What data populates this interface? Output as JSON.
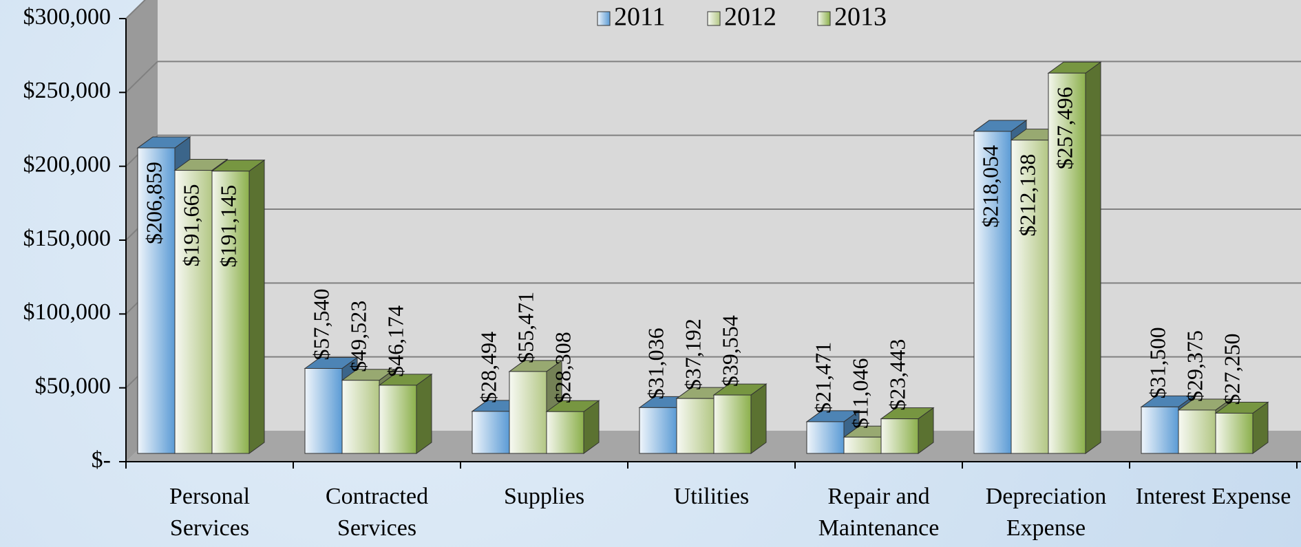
{
  "chart_data": {
    "type": "bar3d",
    "categories": [
      "Personal Services",
      "Contracted Services",
      "Supplies",
      "Utilities",
      "Repair and Maintenance",
      "Depreciation Expense",
      "Interest Expense"
    ],
    "series": [
      {
        "name": "2011",
        "color": "#5b9bd5",
        "values": [
          206859,
          57540,
          28494,
          31036,
          21471,
          218054,
          31500
        ],
        "value_labels": [
          "$206,859",
          "$57,540",
          "$28,494",
          "$31,036",
          "$21,471",
          "$218,054",
          "$31,500"
        ]
      },
      {
        "name": "2012",
        "color": "#b3c785",
        "values": [
          191665,
          49523,
          55471,
          37192,
          11046,
          212138,
          29375
        ],
        "value_labels": [
          "$191,665",
          "$49,523",
          "$55,471",
          "$37,192",
          "$11,046",
          "$212,138",
          "$29,375"
        ]
      },
      {
        "name": "2013",
        "color": "#8cb04c",
        "values": [
          191145,
          46174,
          28308,
          39554,
          23443,
          257496,
          27250
        ],
        "value_labels": [
          "$191,145",
          "$46,174",
          "$28,308",
          "$39,554",
          "$23,443",
          "$257,496",
          "$27,250"
        ]
      }
    ],
    "ylim": [
      0,
      300000
    ],
    "yticks": [
      {
        "value": 0,
        "label": "$-"
      },
      {
        "value": 50000,
        "label": "$50,000"
      },
      {
        "value": 100000,
        "label": "$100,000"
      },
      {
        "value": 150000,
        "label": "$150,000"
      },
      {
        "value": 200000,
        "label": "$200,000"
      },
      {
        "value": 250000,
        "label": "$250,000"
      },
      {
        "value": 300000,
        "label": "$300,000"
      }
    ],
    "grid": true,
    "legend": "top"
  }
}
